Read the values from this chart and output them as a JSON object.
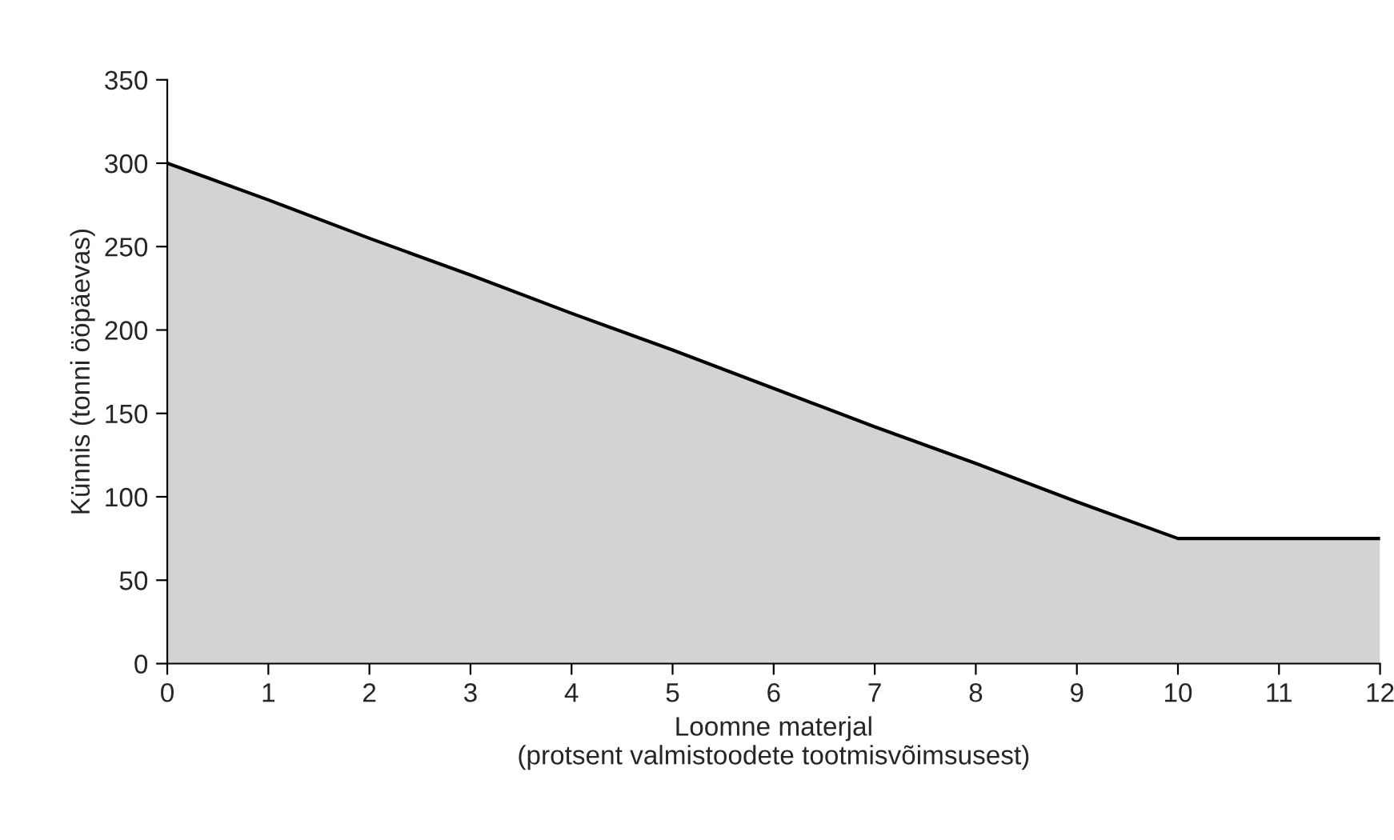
{
  "chart_data": {
    "type": "area",
    "xlabel": "Loomne materjal\n(protsent valmistoodete tootmisvõimsusest)",
    "ylabel": "Künnis (tonni ööpäevas)",
    "x": [
      0,
      1,
      2,
      3,
      4,
      5,
      6,
      7,
      8,
      9,
      10,
      11,
      12
    ],
    "series": [
      {
        "color": "#d3d3d3",
        "values": [
          300,
          278,
          255,
          233,
          210,
          188,
          165,
          142,
          120,
          97,
          75,
          75,
          75
        ]
      }
    ],
    "xlim": [
      0,
      12
    ],
    "xticks": [
      0,
      1,
      2,
      3,
      4,
      5,
      6,
      7,
      8,
      9,
      10,
      11,
      12
    ],
    "ylim": [
      0,
      350
    ],
    "yticks": [
      0,
      50,
      100,
      150,
      200,
      250,
      300,
      350
    ],
    "grid": false
  }
}
